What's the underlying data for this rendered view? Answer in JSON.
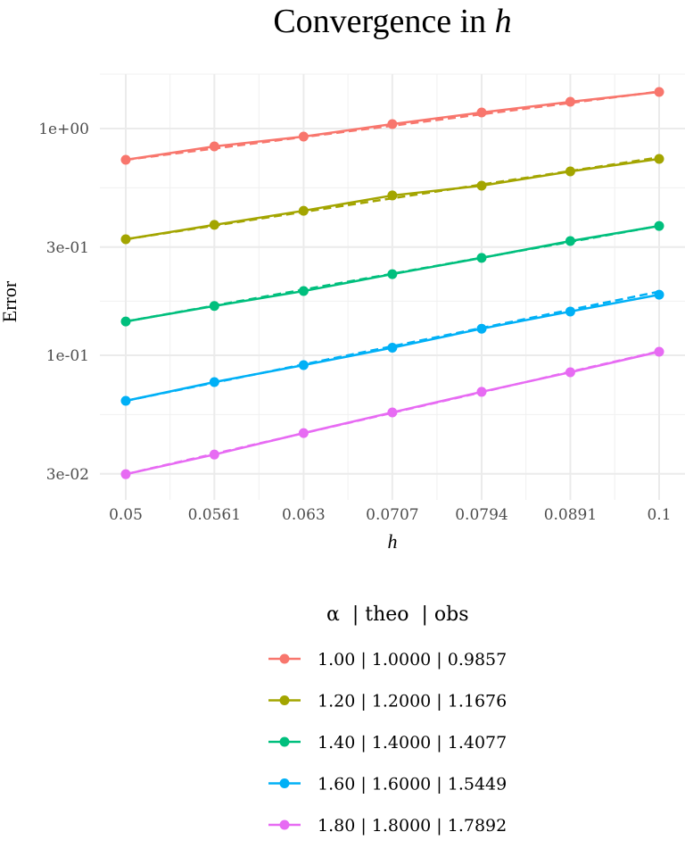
{
  "chart_data": {
    "type": "line",
    "title": "Convergence in h",
    "xlabel": "h",
    "ylabel": "Error",
    "x_scale": "log",
    "y_scale": "log",
    "x": [
      0.05,
      0.0561,
      0.063,
      0.0707,
      0.0794,
      0.0891,
      0.1
    ],
    "x_tick_labels": [
      "0.05",
      "0.0561",
      "0.063",
      "0.0707",
      "0.0794",
      "0.0891",
      "0.1"
    ],
    "y_ticks": [
      1,
      0.3,
      0.1,
      0.03
    ],
    "y_tick_labels": [
      "1e+00",
      "3e-01",
      "1e-01",
      "3e-02"
    ],
    "xlim": [
      0.05,
      0.1
    ],
    "ylim": [
      0.027,
      1.75
    ],
    "grid": true,
    "legend_position": "bottom",
    "legend_title": "α  | theo  | obs",
    "series": [
      {
        "name": "1.00 | 1.0000 | 0.9857",
        "theo": 1.0,
        "color": "#F8766D",
        "values": [
          0.728,
          0.834,
          0.922,
          1.046,
          1.177,
          1.312,
          1.45
        ]
      },
      {
        "name": "1.20 | 1.2000 | 1.1676",
        "theo": 1.2,
        "color": "#A3A500",
        "values": [
          0.325,
          0.376,
          0.434,
          0.507,
          0.56,
          0.647,
          0.735
        ]
      },
      {
        "name": "1.40 | 1.4000 | 1.4077",
        "theo": 1.4,
        "color": "#00BF7D",
        "values": [
          0.141,
          0.165,
          0.192,
          0.228,
          0.269,
          0.319,
          0.372
        ]
      },
      {
        "name": "1.60 | 1.6000 | 1.5449",
        "theo": 1.6,
        "color": "#00B0F6",
        "values": [
          0.063,
          0.0762,
          0.0905,
          0.108,
          0.131,
          0.156,
          0.185
        ]
      },
      {
        "name": "1.80 | 1.8000 | 1.7892",
        "theo": 1.8,
        "color": "#E76BF3",
        "values": [
          0.0299,
          0.0365,
          0.0454,
          0.056,
          0.069,
          0.0842,
          0.1037
        ]
      }
    ]
  }
}
